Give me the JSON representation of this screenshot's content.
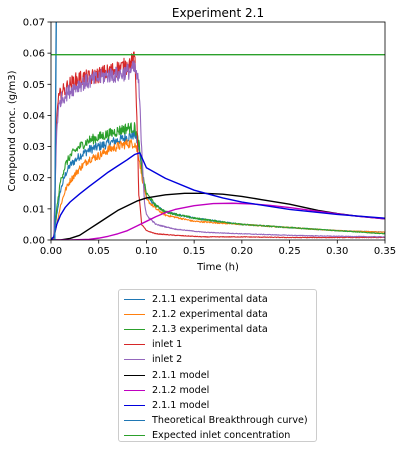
{
  "chart_data": {
    "type": "line",
    "title": "Experiment 2.1",
    "xlabel": "Time (h)",
    "ylabel": "Compound conc. (g/m3)",
    "xlim": [
      0,
      0.35
    ],
    "ylim": [
      0,
      0.07
    ],
    "xticks": [
      "0.00",
      "0.05",
      "0.10",
      "0.15",
      "0.20",
      "0.25",
      "0.30",
      "0.35"
    ],
    "yticks": [
      "0.00",
      "0.01",
      "0.02",
      "0.03",
      "0.04",
      "0.05",
      "0.06",
      "0.07"
    ],
    "grid": false,
    "legend_placement": "below",
    "series": [
      {
        "name": "2.1.1 experimental data",
        "color": "#1f77b4",
        "style": "noisy",
        "x": [
          0,
          0.003,
          0.006,
          0.01,
          0.015,
          0.02,
          0.03,
          0.04,
          0.05,
          0.06,
          0.07,
          0.08,
          0.088,
          0.092,
          0.096,
          0.1,
          0.11,
          0.12,
          0.15,
          0.2,
          0.25,
          0.3,
          0.35
        ],
        "y": [
          0,
          0.001,
          0.008,
          0.016,
          0.021,
          0.024,
          0.027,
          0.029,
          0.03,
          0.031,
          0.032,
          0.033,
          0.034,
          0.03,
          0.02,
          0.014,
          0.011,
          0.009,
          0.007,
          0.005,
          0.004,
          0.003,
          0.0025
        ]
      },
      {
        "name": "2.1.2 experimental data",
        "color": "#ff7f0e",
        "style": "noisy",
        "x": [
          0,
          0.003,
          0.006,
          0.01,
          0.015,
          0.02,
          0.03,
          0.04,
          0.05,
          0.06,
          0.07,
          0.08,
          0.088,
          0.092,
          0.096,
          0.1,
          0.11,
          0.12,
          0.15,
          0.2,
          0.25,
          0.3,
          0.35
        ],
        "y": [
          0,
          0.0005,
          0.005,
          0.011,
          0.016,
          0.019,
          0.023,
          0.026,
          0.027,
          0.029,
          0.03,
          0.031,
          0.031,
          0.027,
          0.019,
          0.013,
          0.01,
          0.008,
          0.006,
          0.005,
          0.004,
          0.003,
          0.0025
        ]
      },
      {
        "name": "2.1.3 experimental data",
        "color": "#2ca02c",
        "style": "noisy",
        "x": [
          0,
          0.003,
          0.006,
          0.01,
          0.015,
          0.02,
          0.03,
          0.04,
          0.05,
          0.06,
          0.07,
          0.08,
          0.088,
          0.092,
          0.096,
          0.1,
          0.11,
          0.12,
          0.15,
          0.2,
          0.25,
          0.3,
          0.35
        ],
        "y": [
          0,
          0.001,
          0.01,
          0.019,
          0.024,
          0.027,
          0.03,
          0.032,
          0.033,
          0.034,
          0.035,
          0.036,
          0.036,
          0.031,
          0.021,
          0.015,
          0.011,
          0.009,
          0.007,
          0.005,
          0.004,
          0.003,
          0.002
        ]
      },
      {
        "name": "inlet 1",
        "color": "#d62728",
        "style": "noisy",
        "x": [
          0,
          0.003,
          0.006,
          0.008,
          0.01,
          0.02,
          0.03,
          0.04,
          0.05,
          0.06,
          0.07,
          0.08,
          0.088,
          0.09,
          0.092,
          0.095,
          0.1,
          0.11,
          0.13,
          0.16,
          0.2,
          0.25,
          0.3,
          0.35
        ],
        "y": [
          0,
          0.001,
          0.04,
          0.045,
          0.047,
          0.05,
          0.052,
          0.052,
          0.053,
          0.054,
          0.055,
          0.056,
          0.058,
          0.04,
          0.015,
          0.005,
          0.003,
          0.002,
          0.0015,
          0.001,
          0.001,
          0.0008,
          0.0008,
          0.0008
        ]
      },
      {
        "name": "inlet 2",
        "color": "#9467bd",
        "style": "noisy",
        "x": [
          0,
          0.003,
          0.006,
          0.008,
          0.01,
          0.02,
          0.03,
          0.04,
          0.05,
          0.06,
          0.07,
          0.08,
          0.088,
          0.092,
          0.095,
          0.098,
          0.1,
          0.11,
          0.13,
          0.16,
          0.2,
          0.25,
          0.3,
          0.35
        ],
        "y": [
          0,
          0.001,
          0.036,
          0.042,
          0.045,
          0.048,
          0.05,
          0.051,
          0.052,
          0.053,
          0.053,
          0.054,
          0.055,
          0.05,
          0.03,
          0.012,
          0.008,
          0.005,
          0.0035,
          0.0025,
          0.002,
          0.0015,
          0.0012,
          0.001
        ]
      },
      {
        "name": "2.1.1 model",
        "color": "#000000",
        "style": "smooth",
        "x": [
          0,
          0.01,
          0.02,
          0.03,
          0.04,
          0.05,
          0.06,
          0.07,
          0.08,
          0.09,
          0.1,
          0.12,
          0.14,
          0.16,
          0.18,
          0.2,
          0.22,
          0.25,
          0.28,
          0.3,
          0.32,
          0.35
        ],
        "y": [
          0,
          0,
          0.0005,
          0.0015,
          0.0035,
          0.0055,
          0.0075,
          0.0095,
          0.011,
          0.0125,
          0.0135,
          0.0145,
          0.015,
          0.015,
          0.0147,
          0.014,
          0.013,
          0.0115,
          0.0095,
          0.0085,
          0.0077,
          0.0068
        ]
      },
      {
        "name": "2.1.2 model",
        "color": "#c000c0",
        "style": "smooth",
        "x": [
          0,
          0.02,
          0.04,
          0.05,
          0.06,
          0.07,
          0.08,
          0.09,
          0.1,
          0.11,
          0.12,
          0.13,
          0.15,
          0.17,
          0.19,
          0.21,
          0.23,
          0.25,
          0.28,
          0.3,
          0.32,
          0.35
        ],
        "y": [
          0,
          0,
          0.0002,
          0.0006,
          0.0012,
          0.002,
          0.003,
          0.0045,
          0.006,
          0.0075,
          0.0088,
          0.0098,
          0.011,
          0.0117,
          0.0118,
          0.0116,
          0.0111,
          0.0104,
          0.0092,
          0.0084,
          0.0077,
          0.0068
        ]
      },
      {
        "name": "2.1.1 model",
        "color": "#0000dd",
        "style": "smooth",
        "x": [
          0,
          0.003,
          0.006,
          0.01,
          0.015,
          0.02,
          0.03,
          0.04,
          0.05,
          0.06,
          0.07,
          0.08,
          0.088,
          0.093,
          0.1,
          0.12,
          0.15,
          0.18,
          0.2,
          0.25,
          0.3,
          0.35
        ],
        "y": [
          0,
          0.001,
          0.005,
          0.008,
          0.0105,
          0.0122,
          0.0148,
          0.0172,
          0.0195,
          0.0218,
          0.0238,
          0.0258,
          0.0275,
          0.028,
          0.0232,
          0.0198,
          0.016,
          0.0135,
          0.0122,
          0.0098,
          0.0082,
          0.007
        ]
      },
      {
        "name": "Theoretical Breakthrough curve)",
        "color": "#1f77b4",
        "style": "smooth",
        "x": [
          0.004,
          0.0045,
          0.0055,
          0.006
        ],
        "y": [
          0,
          0.03,
          0.07,
          0.08
        ]
      },
      {
        "name": "Expected inlet concentration",
        "color": "#2ca02c",
        "style": "smooth",
        "x": [
          0,
          0.35
        ],
        "y": [
          0.0595,
          0.0595
        ]
      }
    ]
  }
}
